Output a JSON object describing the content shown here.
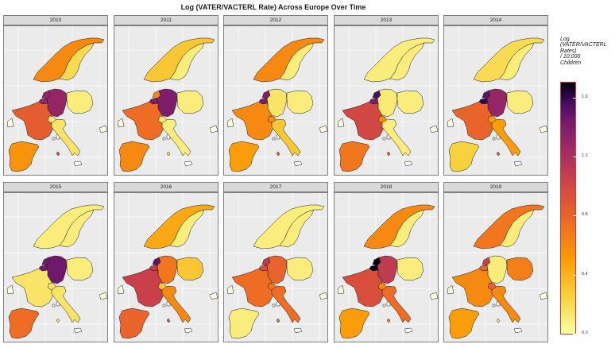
{
  "chart_data": {
    "type": "choropleth",
    "title": "Log (VATER/VACTERL Rate) Across Europe Over Time",
    "legend": {
      "title": "Log (VATER/VACTERL Rates) / 10,000 Children",
      "title_lines": [
        "Log",
        "(VATER/VACTERL",
        "Rates)",
        "/ 10,000",
        "Children"
      ],
      "ticks": [
        "0.0",
        "0.4",
        "0.8",
        "1.2",
        "1.6"
      ],
      "range": [
        0.0,
        1.7
      ],
      "placement": "right"
    },
    "regions": [
      "Norway",
      "Sweden",
      "Netherlands",
      "Belgium",
      "Germany",
      "Poland",
      "France",
      "Switzerland",
      "Italy",
      "Spain",
      "Malta"
    ],
    "panels": [
      {
        "year": "2010",
        "values": {
          "Norway": 0.6,
          "Sweden": 0.2,
          "Netherlands": 1.3,
          "Belgium": 1.3,
          "Germany": 1.3,
          "Poland": 0.1,
          "France": 0.85,
          "Switzerland": 0.12,
          "Italy": 0.15,
          "Spain": 0.55,
          "Malta": 0.9
        }
      },
      {
        "year": "2011",
        "values": {
          "Norway": 0.3,
          "Sweden": 0.1,
          "Netherlands": 0.6,
          "Belgium": 1.4,
          "Germany": 1.4,
          "Poland": 0.1,
          "France": 0.75,
          "Switzerland": 0.12,
          "Italy": 0.1,
          "Spain": 0.6,
          "Malta": 0.15
        }
      },
      {
        "year": "2012",
        "values": {
          "Norway": 0.6,
          "Sweden": 0.1,
          "Netherlands": 1.4,
          "Belgium": 1.4,
          "Germany": 0.15,
          "Poland": 0.1,
          "France": 0.6,
          "Switzerland": 0.6,
          "Italy": 0.3,
          "Spain": 0.5,
          "Malta": 0.8
        }
      },
      {
        "year": "2013",
        "values": {
          "Norway": 0.1,
          "Sweden": 0.1,
          "Netherlands": 1.55,
          "Belgium": 1.4,
          "Germany": 0.12,
          "Poland": 0.1,
          "France": 1.0,
          "Switzerland": 0.6,
          "Italy": 0.1,
          "Spain": 0.7,
          "Malta": 0.8
        }
      },
      {
        "year": "2014",
        "values": {
          "Norway": 0.2,
          "Sweden": 0.1,
          "Netherlands": 1.5,
          "Belgium": 1.6,
          "Germany": 1.3,
          "Poland": 0.1,
          "France": 0.8,
          "Switzerland": 0.5,
          "Italy": 0.5,
          "Spain": 0.25,
          "Malta": 0.8
        }
      },
      {
        "year": "2015",
        "values": {
          "Norway": 0.1,
          "Sweden": 0.1,
          "Netherlands": 1.45,
          "Belgium": 1.45,
          "Germany": 1.45,
          "Poland": 0.1,
          "France": 0.15,
          "Switzerland": 0.15,
          "Italy": 0.15,
          "Spain": 0.75,
          "Malta": 0.1
        }
      },
      {
        "year": "2016",
        "values": {
          "Norway": 0.45,
          "Sweden": 0.1,
          "Netherlands": 1.5,
          "Belgium": 1.1,
          "Germany": 0.7,
          "Poland": 0.3,
          "France": 1.05,
          "Switzerland": 0.3,
          "Italy": 0.6,
          "Spain": 0.8,
          "Malta": 0.9
        }
      },
      {
        "year": "2017",
        "values": {
          "Norway": 0.1,
          "Sweden": 0.1,
          "Netherlands": 1.1,
          "Belgium": 0.95,
          "Germany": 0.8,
          "Poland": 0.1,
          "France": 0.75,
          "Switzerland": 0.7,
          "Italy": 0.75,
          "Spain": 0.1,
          "Malta": 0.7
        }
      },
      {
        "year": "2018",
        "values": {
          "Norway": 0.6,
          "Sweden": 0.1,
          "Netherlands": 1.7,
          "Belgium": 1.7,
          "Germany": 1.1,
          "Poland": 0.1,
          "France": 0.95,
          "Switzerland": 0.6,
          "Italy": 0.75,
          "Spain": 0.5,
          "Malta": 0.6
        }
      },
      {
        "year": "2019",
        "values": {
          "Norway": 0.7,
          "Sweden": 0.1,
          "Netherlands": 1.05,
          "Belgium": 0.8,
          "Germany": 0.1,
          "Poland": 0.65,
          "France": 0.6,
          "Switzerland": 0.8,
          "Italy": 0.6,
          "Spain": 0.5,
          "Malta": 0.1
        }
      }
    ]
  }
}
